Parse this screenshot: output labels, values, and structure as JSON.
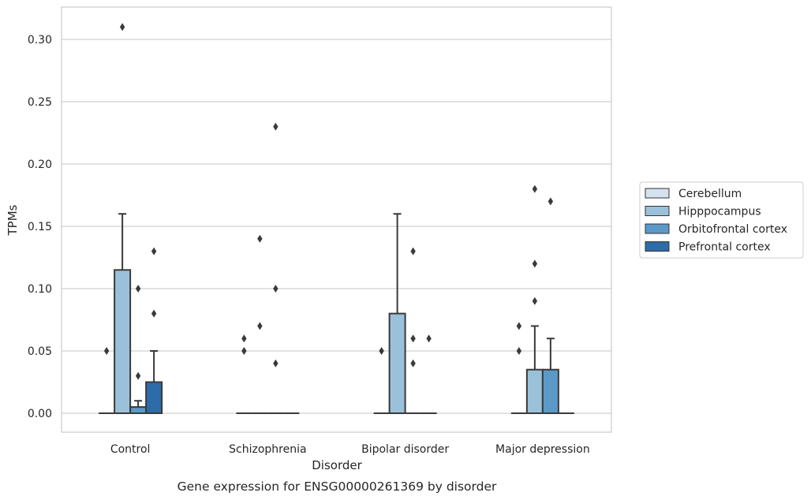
{
  "chart_data": {
    "type": "box",
    "caption": "Gene expression for ENSG00000261369 by disorder",
    "xlabel": "Disorder",
    "ylabel": "TPMs",
    "ylim": [
      -0.015,
      0.325
    ],
    "yticks": [
      "0.00",
      "0.05",
      "0.10",
      "0.15",
      "0.20",
      "0.25",
      "0.30"
    ],
    "grid": "horizontal",
    "legend_position": "right",
    "categories": [
      "Control",
      "Schizophrenia",
      "Bipolar disorder",
      "Major depression"
    ],
    "series": [
      {
        "name": "Cerebellum",
        "color": "#d4e1ee",
        "boxes": [
          {
            "q1": 0,
            "median": 0,
            "q3": 0,
            "whisker_low": 0,
            "whisker_high": 0,
            "outliers": [
              0.05
            ]
          },
          {
            "q1": 0,
            "median": 0,
            "q3": 0,
            "whisker_low": 0,
            "whisker_high": 0,
            "outliers": [
              0.05,
              0.06
            ]
          },
          {
            "q1": 0,
            "median": 0,
            "q3": 0,
            "whisker_low": 0,
            "whisker_high": 0,
            "outliers": [
              0.05
            ]
          },
          {
            "q1": 0,
            "median": 0,
            "q3": 0,
            "whisker_low": 0,
            "whisker_high": 0,
            "outliers": [
              0.05,
              0.07
            ]
          }
        ]
      },
      {
        "name": "Hipppocampus",
        "color": "#9bc1da",
        "boxes": [
          {
            "q1": 0,
            "median": 0,
            "q3": 0.115,
            "whisker_low": 0,
            "whisker_high": 0.16,
            "outliers": [
              0.31
            ]
          },
          {
            "q1": 0,
            "median": 0,
            "q3": 0,
            "whisker_low": 0,
            "whisker_high": 0,
            "outliers": [
              0.07,
              0.14
            ]
          },
          {
            "q1": 0,
            "median": 0,
            "q3": 0.08,
            "whisker_low": 0,
            "whisker_high": 0.16,
            "outliers": []
          },
          {
            "q1": 0,
            "median": 0,
            "q3": 0.035,
            "whisker_low": 0,
            "whisker_high": 0.07,
            "outliers": [
              0.09,
              0.12,
              0.18
            ]
          }
        ]
      },
      {
        "name": "Orbitofrontal cortex",
        "color": "#5b9ac8",
        "boxes": [
          {
            "q1": 0,
            "median": 0,
            "q3": 0.005,
            "whisker_low": 0,
            "whisker_high": 0.01,
            "outliers": [
              0.03,
              0.1
            ]
          },
          {
            "q1": 0,
            "median": 0,
            "q3": 0,
            "whisker_low": 0,
            "whisker_high": 0,
            "outliers": [
              0.04,
              0.1,
              0.23
            ]
          },
          {
            "q1": 0,
            "median": 0,
            "q3": 0,
            "whisker_low": 0,
            "whisker_high": 0,
            "outliers": [
              0.04,
              0.06,
              0.13
            ]
          },
          {
            "q1": 0,
            "median": 0,
            "q3": 0.035,
            "whisker_low": 0,
            "whisker_high": 0.06,
            "outliers": [
              0.17
            ]
          }
        ]
      },
      {
        "name": "Prefrontal cortex",
        "color": "#2d6ca8",
        "boxes": [
          {
            "q1": 0,
            "median": 0,
            "q3": 0.025,
            "whisker_low": 0,
            "whisker_high": 0.05,
            "outliers": [
              0.08,
              0.13
            ]
          },
          {
            "q1": 0,
            "median": 0,
            "q3": 0,
            "whisker_low": 0,
            "whisker_high": 0,
            "outliers": []
          },
          {
            "q1": 0,
            "median": 0,
            "q3": 0,
            "whisker_low": 0,
            "whisker_high": 0,
            "outliers": [
              0.06
            ]
          },
          {
            "q1": 0,
            "median": 0,
            "q3": 0,
            "whisker_low": 0,
            "whisker_high": 0,
            "outliers": []
          }
        ]
      }
    ]
  }
}
